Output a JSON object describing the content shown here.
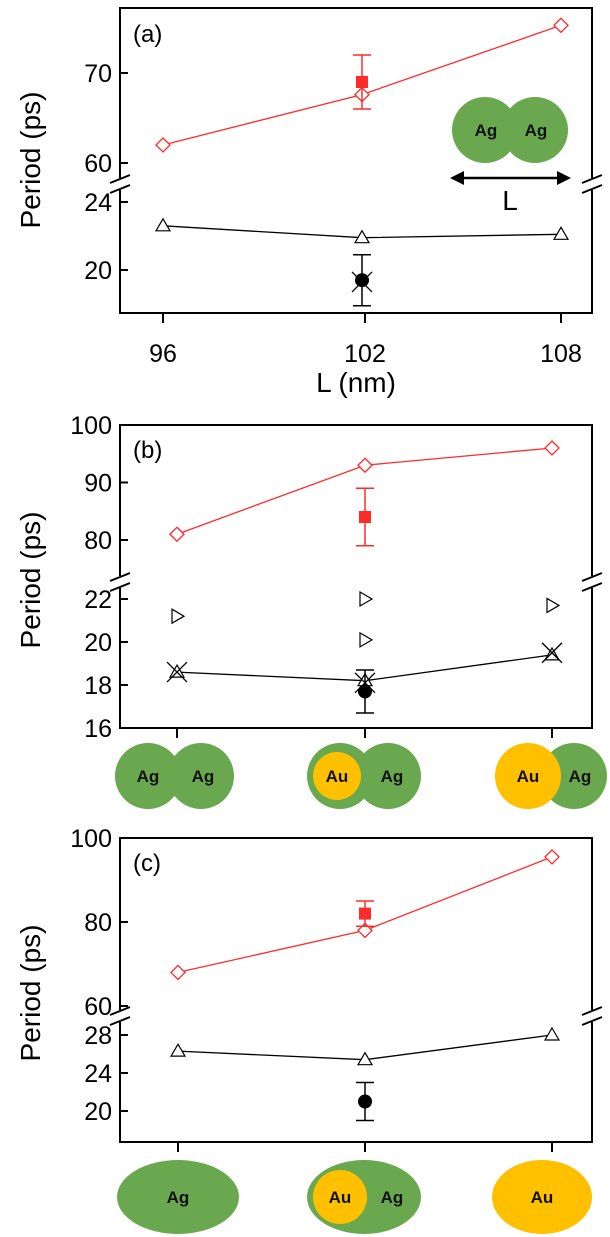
{
  "figure": {
    "ylabel": "Period (ps)",
    "colors": {
      "red": "#ff2a2a",
      "black": "#000000",
      "ag_green": "#6aa84f",
      "au_yellow": "#ffc000",
      "ag_dark_green": "#5f9c3f"
    }
  },
  "chart_data": [
    {
      "id": "a",
      "type": "line",
      "panel_label": "(a)",
      "xlabel": "L (nm)",
      "x_ticks": [
        "96",
        "102",
        "108"
      ],
      "broken_y_axis": true,
      "y_upper_ticks": [
        "60",
        "70"
      ],
      "y_lower_ticks": [
        "20",
        "24"
      ],
      "series": [
        {
          "marker": "open-diamond",
          "color": "red",
          "x": [
            96,
            102,
            108
          ],
          "values": [
            62,
            67.6,
            75.3
          ]
        },
        {
          "marker": "open-triangle-up",
          "color": "black",
          "x": [
            96,
            102,
            108
          ],
          "values": [
            22.6,
            21.9,
            22.1
          ]
        },
        {
          "marker": "filled-square",
          "color": "red",
          "x": [
            102
          ],
          "values": [
            69
          ],
          "error": [
            3
          ]
        },
        {
          "marker": "filled-circle",
          "color": "black",
          "x": [
            102
          ],
          "values": [
            19.4
          ],
          "error": [
            1.5
          ]
        },
        {
          "marker": "cross",
          "color": "black",
          "x": [
            102
          ],
          "values": [
            19.3
          ]
        }
      ],
      "inset": {
        "particles": [
          "Ag",
          "Ag"
        ],
        "arrow_label": "L"
      }
    },
    {
      "id": "b",
      "type": "line",
      "panel_label": "(b)",
      "broken_y_axis": true,
      "y_upper_ticks": [
        "80",
        "90",
        "100"
      ],
      "y_lower_ticks": [
        "16",
        "18",
        "20",
        "22"
      ],
      "x_category_labels": [
        [
          "Ag",
          "Ag"
        ],
        [
          "Au",
          "Ag"
        ],
        [
          "Au",
          "Ag"
        ]
      ],
      "series": [
        {
          "marker": "open-diamond",
          "color": "red",
          "values": [
            81,
            93,
            96
          ]
        },
        {
          "marker": "open-triangle-up",
          "color": "black",
          "values": [
            18.6,
            18.2,
            19.4
          ]
        },
        {
          "marker": "cross",
          "color": "black",
          "values": [
            18.6,
            18.1,
            19.5
          ]
        },
        {
          "marker": "open-triangle-right",
          "color": "black",
          "values": [
            21.2,
            22,
            21.7
          ]
        },
        {
          "marker": "open-triangle-right",
          "color": "black",
          "values": [
            null,
            20.1,
            null
          ]
        },
        {
          "marker": "filled-square",
          "color": "red",
          "values": [
            null,
            84,
            null
          ],
          "error": [
            null,
            5,
            null
          ]
        },
        {
          "marker": "filled-circle",
          "color": "black",
          "values": [
            null,
            17.7,
            null
          ],
          "error": [
            null,
            1,
            null
          ]
        }
      ]
    },
    {
      "id": "c",
      "type": "line",
      "panel_label": "(c)",
      "broken_y_axis": true,
      "y_upper_ticks": [
        "60",
        "80",
        "100"
      ],
      "y_lower_ticks": [
        "20",
        "24",
        "28"
      ],
      "x_category_labels": [
        [
          "Ag"
        ],
        [
          "Au",
          "Ag"
        ],
        [
          "Au"
        ]
      ],
      "series": [
        {
          "marker": "open-diamond",
          "color": "red",
          "values": [
            68,
            78,
            95.5
          ]
        },
        {
          "marker": "open-triangle-up",
          "color": "black",
          "values": [
            26.3,
            25.4,
            28
          ]
        },
        {
          "marker": "filled-square",
          "color": "red",
          "values": [
            null,
            82,
            null
          ],
          "error": [
            null,
            3,
            null
          ]
        },
        {
          "marker": "filled-circle",
          "color": "black",
          "values": [
            null,
            21,
            null
          ],
          "error": [
            null,
            2,
            null
          ]
        }
      ]
    }
  ]
}
